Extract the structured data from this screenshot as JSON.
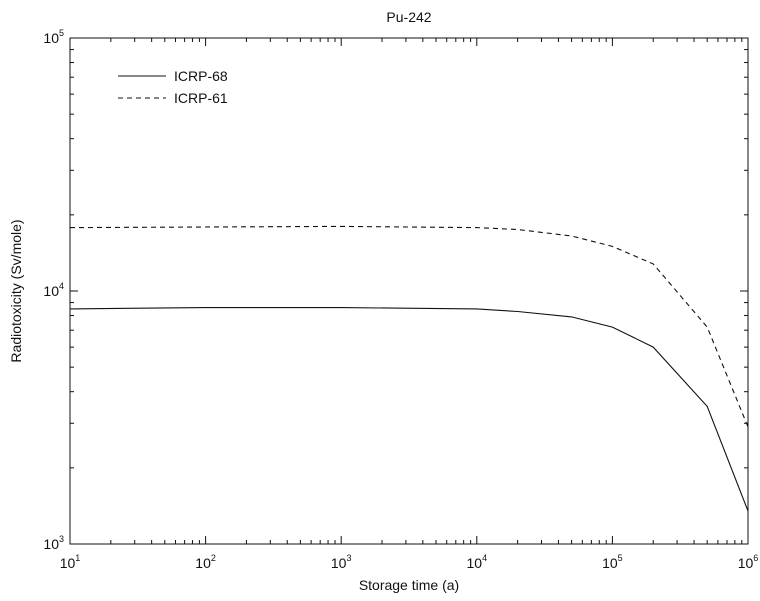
{
  "chart_data": {
    "type": "line",
    "title": "Pu-242",
    "xlabel": "Storage time (a)",
    "ylabel": "Radiotoxicity (Sv/mole)",
    "xscale": "log",
    "yscale": "log",
    "xlim": [
      10,
      1000000
    ],
    "ylim": [
      1000,
      100000
    ],
    "x_ticks": [
      {
        "base": "10",
        "exp": "1",
        "value": 10
      },
      {
        "base": "10",
        "exp": "2",
        "value": 100
      },
      {
        "base": "10",
        "exp": "3",
        "value": 1000
      },
      {
        "base": "10",
        "exp": "4",
        "value": 10000
      },
      {
        "base": "10",
        "exp": "5",
        "value": 100000
      },
      {
        "base": "10",
        "exp": "6",
        "value": 1000000
      }
    ],
    "y_ticks": [
      {
        "base": "10",
        "exp": "3",
        "value": 1000
      },
      {
        "base": "10",
        "exp": "4",
        "value": 10000
      },
      {
        "base": "10",
        "exp": "5",
        "value": 100000
      }
    ],
    "grid": false,
    "legend_position": "top-left",
    "series": [
      {
        "name": "ICRP-68",
        "style": "solid",
        "color": "#111111",
        "points": [
          [
            10,
            8500
          ],
          [
            100,
            8600
          ],
          [
            1000,
            8600
          ],
          [
            10000,
            8500
          ],
          [
            20000,
            8300
          ],
          [
            50000,
            7900
          ],
          [
            100000,
            7200
          ],
          [
            200000,
            6000
          ],
          [
            500000,
            3500
          ],
          [
            1000000,
            1350
          ]
        ]
      },
      {
        "name": "ICRP-61",
        "style": "dashed",
        "color": "#111111",
        "points": [
          [
            10,
            17800
          ],
          [
            100,
            17900
          ],
          [
            1000,
            18000
          ],
          [
            10000,
            17800
          ],
          [
            20000,
            17500
          ],
          [
            50000,
            16500
          ],
          [
            100000,
            15000
          ],
          [
            200000,
            12800
          ],
          [
            500000,
            7200
          ],
          [
            1000000,
            2900
          ]
        ]
      }
    ]
  }
}
